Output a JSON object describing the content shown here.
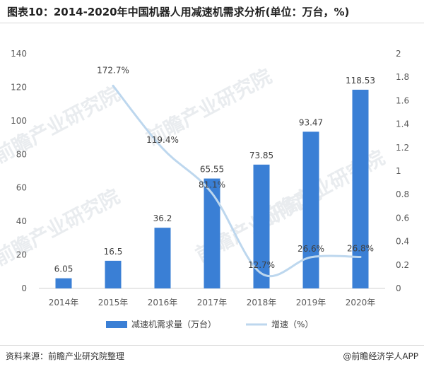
{
  "title": "图表10：2014-2020年中国机器人用减速机需求分析(单位：万台，%)",
  "source": "资料来源：前瞻产业研究院整理",
  "credit": "@前瞻经济学人APP",
  "watermark": "前瞻产业研究院",
  "colors": {
    "bar": "#3a7fd5",
    "line": "#bdd7ee"
  },
  "chart_data": {
    "type": "bar",
    "categories": [
      "2014年",
      "2015年",
      "2016年",
      "2017年",
      "2018年",
      "2019年",
      "2020年"
    ],
    "series": [
      {
        "name": "减速机需求量（万台）",
        "type": "bar",
        "axis": "left",
        "values": [
          6.05,
          16.5,
          36.2,
          65.55,
          73.85,
          93.47,
          118.53
        ],
        "labels": [
          "6.05",
          "16.5",
          "36.2",
          "65.55",
          "73.85",
          "93.47",
          "118.53"
        ]
      },
      {
        "name": "增速（%）",
        "type": "line",
        "axis": "right",
        "values": [
          null,
          1.727,
          1.194,
          0.811,
          0.127,
          0.266,
          0.268
        ],
        "labels": [
          "",
          "172.7%",
          "119.4%",
          "81.1%",
          "12.7%",
          "26.6%",
          "26.8%"
        ]
      }
    ],
    "ylim_left": [
      0,
      140
    ],
    "yticks_left": [
      "0",
      "20",
      "40",
      "60",
      "80",
      "100",
      "120",
      "140"
    ],
    "ylim_right": [
      0,
      2
    ],
    "yticks_right": [
      "0",
      "0.2",
      "0.4",
      "0.6",
      "0.8",
      "1",
      "1.2",
      "1.4",
      "1.6",
      "1.8",
      "2"
    ],
    "legend_position": "bottom",
    "grid": false
  }
}
